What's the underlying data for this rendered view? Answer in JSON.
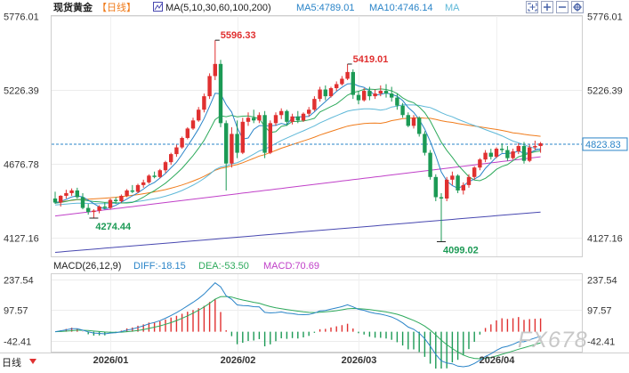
{
  "header": {
    "instrument": "现货黄金",
    "period": "【日线】",
    "ma_params": "MA(5,10,30,60,100,200)",
    "ma5": "MA5:4789.01",
    "ma10": "MA10:4746.14",
    "ma_extra": "MA"
  },
  "toolbar": {
    "icons": [
      "expand-icon",
      "zoom-in-icon",
      "zoom-out-icon",
      "settings-icon"
    ]
  },
  "macd_header": {
    "params": "MACD(26,12,9)",
    "diff": "DIFF:-18.15",
    "dea": "DEA:-53.50",
    "macd": "MACD:70.69"
  },
  "watermark": "FX678",
  "bottom_left_label": "日线",
  "colors": {
    "up": "#e03030",
    "down": "#1c9a55",
    "ma5": "#2a84c8",
    "ma10": "#2eaa5c",
    "ma30": "#5eb8d8",
    "ma60": "#f07c1c",
    "ma100": "#c040c8",
    "ma200": "#4848b0",
    "diff": "#2a84c8",
    "dea": "#2eaa5c",
    "price_line": "#2a84c8",
    "high_label": "#e03030",
    "low_label": "#1c9a55"
  },
  "chart_data": [
    {
      "type": "candlestick",
      "title": "现货黄金 日线",
      "ylim": [
        3990,
        5776.01
      ],
      "y_ticks": [
        "5776.01",
        "5226.39",
        "4676.78",
        "4127.16"
      ],
      "y_tick_values": [
        5776.01,
        5226.39,
        4676.78,
        4127.16
      ],
      "x_ticks": [
        "2026/01",
        "2026/02",
        "2026/03",
        "2026/04"
      ],
      "x_tick_index": [
        10,
        33,
        55,
        80
      ],
      "current_price": "4823.83",
      "current_price_value": 4823.83,
      "annotations": [
        {
          "label": "5596.33",
          "index": 29,
          "value": 5596.33,
          "kind": "high"
        },
        {
          "label": "5419.01",
          "index": 53,
          "value": 5419.01,
          "kind": "high"
        },
        {
          "label": "4274.44",
          "index": 7,
          "value": 4274.44,
          "kind": "low"
        },
        {
          "label": "4099.02",
          "index": 70,
          "value": 4099.02,
          "kind": "low"
        }
      ],
      "candles": [
        [
          4420,
          4470,
          4380,
          4390
        ],
        [
          4390,
          4445,
          4360,
          4440
        ],
        [
          4440,
          4485,
          4420,
          4460
        ],
        [
          4460,
          4495,
          4440,
          4480
        ],
        [
          4480,
          4500,
          4420,
          4430
        ],
        [
          4430,
          4460,
          4340,
          4350
        ],
        [
          4350,
          4380,
          4300,
          4320
        ],
        [
          4320,
          4340,
          4275,
          4330
        ],
        [
          4330,
          4370,
          4310,
          4360
        ],
        [
          4360,
          4390,
          4340,
          4350
        ],
        [
          4350,
          4420,
          4340,
          4410
        ],
        [
          4410,
          4430,
          4380,
          4400
        ],
        [
          4400,
          4450,
          4390,
          4440
        ],
        [
          4440,
          4490,
          4430,
          4480
        ],
        [
          4480,
          4520,
          4460,
          4470
        ],
        [
          4470,
          4530,
          4460,
          4520
        ],
        [
          4520,
          4560,
          4500,
          4540
        ],
        [
          4540,
          4600,
          4530,
          4590
        ],
        [
          4590,
          4620,
          4570,
          4580
        ],
        [
          4580,
          4640,
          4570,
          4630
        ],
        [
          4630,
          4700,
          4610,
          4690
        ],
        [
          4690,
          4760,
          4670,
          4750
        ],
        [
          4750,
          4820,
          4730,
          4800
        ],
        [
          4800,
          4880,
          4790,
          4870
        ],
        [
          4870,
          4950,
          4860,
          4940
        ],
        [
          4940,
          5020,
          4930,
          5000
        ],
        [
          5000,
          5100,
          4990,
          5080
        ],
        [
          5080,
          5200,
          5060,
          5180
        ],
        [
          5180,
          5350,
          5160,
          5330
        ],
        [
          5330,
          5596,
          5300,
          5420
        ],
        [
          5420,
          5450,
          4950,
          4980
        ],
        [
          4980,
          5000,
          4480,
          4680
        ],
        [
          4680,
          4950,
          4650,
          4900
        ],
        [
          4900,
          5000,
          4720,
          4760
        ],
        [
          4760,
          5020,
          4750,
          4990
        ],
        [
          4990,
          5060,
          4960,
          5020
        ],
        [
          5020,
          5080,
          4980,
          5000
        ],
        [
          5000,
          5060,
          4980,
          5040
        ],
        [
          5040,
          5070,
          4720,
          4760
        ],
        [
          4760,
          5000,
          4750,
          4980
        ],
        [
          4980,
          5060,
          4960,
          5040
        ],
        [
          5040,
          5090,
          5010,
          5070
        ],
        [
          5070,
          5080,
          4960,
          4990
        ],
        [
          4990,
          5050,
          4970,
          5030
        ],
        [
          5030,
          5070,
          4980,
          5000
        ],
        [
          5000,
          5060,
          4990,
          5050
        ],
        [
          5050,
          5100,
          5030,
          5080
        ],
        [
          5080,
          5180,
          5070,
          5160
        ],
        [
          5160,
          5250,
          5140,
          5230
        ],
        [
          5230,
          5260,
          5150,
          5180
        ],
        [
          5180,
          5250,
          5170,
          5240
        ],
        [
          5240,
          5290,
          5220,
          5270
        ],
        [
          5270,
          5330,
          5260,
          5310
        ],
        [
          5310,
          5419,
          5300,
          5360
        ],
        [
          5360,
          5380,
          5160,
          5190
        ],
        [
          5190,
          5220,
          5120,
          5150
        ],
        [
          5150,
          5240,
          5140,
          5220
        ],
        [
          5220,
          5250,
          5150,
          5180
        ],
        [
          5180,
          5230,
          5160,
          5200
        ],
        [
          5200,
          5260,
          5180,
          5220
        ],
        [
          5220,
          5270,
          5170,
          5200
        ],
        [
          5200,
          5250,
          5140,
          5170
        ],
        [
          5170,
          5200,
          5080,
          5110
        ],
        [
          5110,
          5130,
          5020,
          5040
        ],
        [
          5040,
          5060,
          4950,
          4960
        ],
        [
          4960,
          5040,
          4940,
          5020
        ],
        [
          5020,
          5030,
          4880,
          4900
        ],
        [
          4900,
          4920,
          4740,
          4760
        ],
        [
          4760,
          4780,
          4560,
          4580
        ],
        [
          4580,
          4600,
          4400,
          4430
        ],
        [
          4430,
          4460,
          4099,
          4420
        ],
        [
          4420,
          4580,
          4400,
          4560
        ],
        [
          4560,
          4620,
          4520,
          4590
        ],
        [
          4590,
          4600,
          4460,
          4480
        ],
        [
          4480,
          4540,
          4450,
          4520
        ],
        [
          4520,
          4600,
          4500,
          4580
        ],
        [
          4580,
          4660,
          4560,
          4650
        ],
        [
          4650,
          4720,
          4630,
          4710
        ],
        [
          4710,
          4780,
          4690,
          4760
        ],
        [
          4760,
          4790,
          4710,
          4730
        ],
        [
          4730,
          4800,
          4720,
          4790
        ],
        [
          4790,
          4830,
          4760,
          4780
        ],
        [
          4780,
          4810,
          4700,
          4720
        ],
        [
          4720,
          4790,
          4710,
          4770
        ],
        [
          4770,
          4830,
          4750,
          4810
        ],
        [
          4810,
          4840,
          4680,
          4700
        ],
        [
          4700,
          4820,
          4690,
          4800
        ],
        [
          4800,
          4850,
          4780,
          4810
        ],
        [
          4810,
          4840,
          4760,
          4830
        ]
      ]
    },
    {
      "type": "macd",
      "title": "MACD(26,12,9)",
      "ylim": [
        -90,
        260
      ],
      "y_ticks": [
        "237.54",
        "97.57",
        "-42.41"
      ],
      "y_tick_values": [
        237.54,
        97.57,
        -42.41
      ]
    }
  ]
}
